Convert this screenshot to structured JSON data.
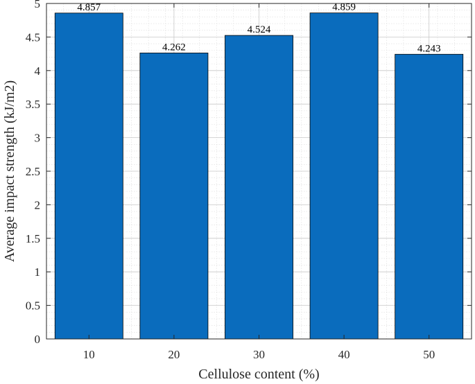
{
  "chart_data": {
    "type": "bar",
    "title": "",
    "xlabel": "Cellulose content (%)",
    "ylabel": "Average impact strength (kJ/m2)",
    "categories": [
      "10",
      "20",
      "30",
      "40",
      "50"
    ],
    "values": [
      4.857,
      4.262,
      4.524,
      4.859,
      4.243
    ],
    "data_labels": [
      "4.857",
      "4.262",
      "4.524",
      "4.859",
      "4.243"
    ],
    "ylim": [
      0,
      5
    ],
    "yticks": [
      0,
      0.5,
      1,
      1.5,
      2,
      2.5,
      3,
      3.5,
      4,
      4.5,
      5
    ],
    "ytick_labels": [
      "0",
      "0.5",
      "1",
      "1.5",
      "2",
      "2.5",
      "3",
      "3.5",
      "4",
      "4.5",
      "5"
    ],
    "grid": "major and minor",
    "bar_color": "#0a6cbd"
  }
}
